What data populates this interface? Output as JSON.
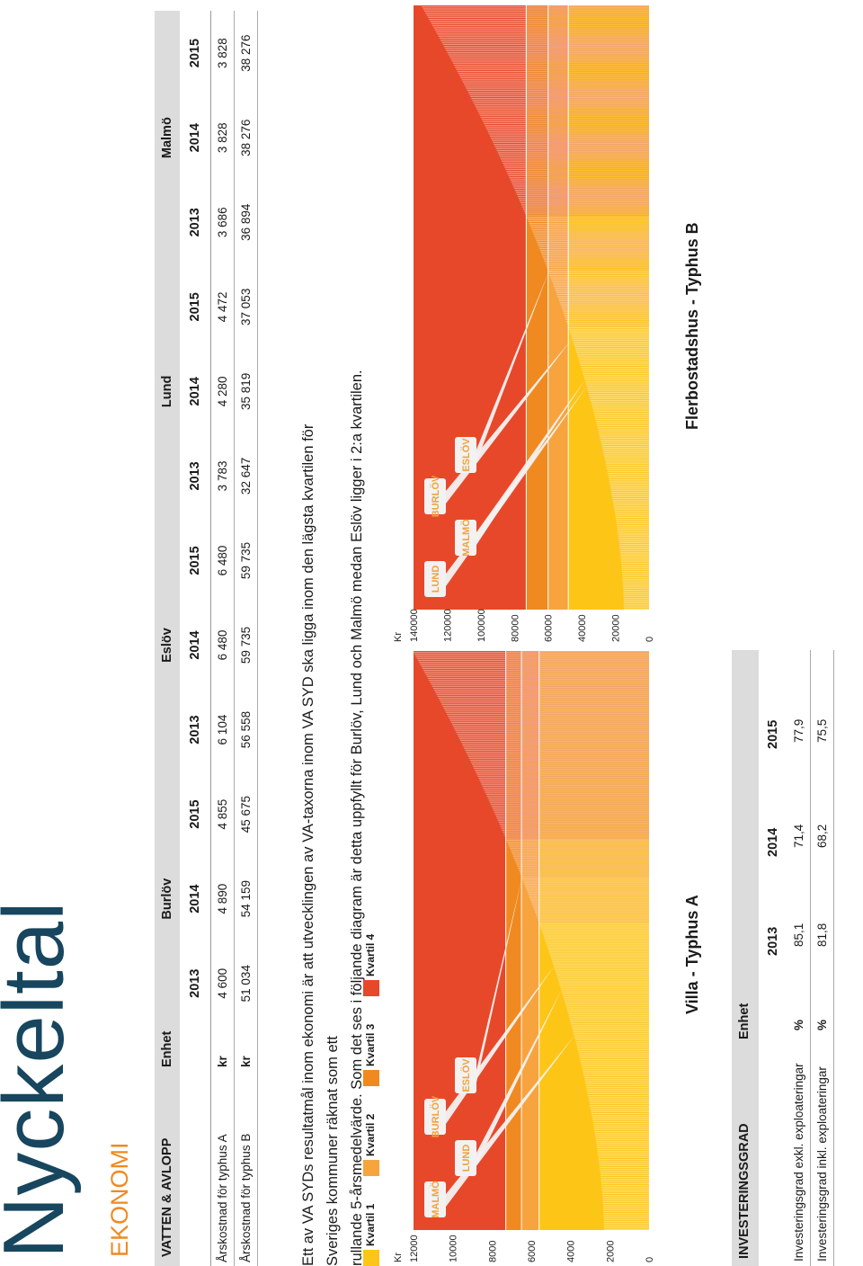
{
  "title": "Nyckeltal",
  "section": "EKONOMI",
  "cost_table": {
    "heading": "VATTEN & AVLOPP",
    "unit_heading": "Enhet",
    "cities": [
      "Burlöv",
      "Eslöv",
      "Lund",
      "Malmö"
    ],
    "years": [
      "2013",
      "2014",
      "2015"
    ],
    "rows": [
      {
        "label": "Årskostnad för typhus A",
        "unit": "kr",
        "values": [
          "4 600",
          "4 890",
          "4 855",
          "6 104",
          "6 480",
          "6 480",
          "3 783",
          "4 280",
          "4 472",
          "3 686",
          "3 828",
          "3 828"
        ]
      },
      {
        "label": "Årskostnad för typhus B",
        "unit": "kr",
        "values": [
          "51 034",
          "54 159",
          "45 675",
          "56 558",
          "59 735",
          "59 735",
          "32 647",
          "35 819",
          "37 053",
          "36 894",
          "38 276",
          "38 276"
        ]
      }
    ]
  },
  "paragraph": {
    "line1": "Ett av VA SYDs resultatmål inom ekonomi är att utvecklingen av VA-taxorna inom VA SYD ska ligga inom den lägsta kvartilen för Sveriges kommuner räknat som ett",
    "line2": "rullande 5-årsmedelvärde. Som det ses i följande diagram är detta uppfyllt för Burlöv, Lund och Malmö medan Eslöv ligger i 2:a kvartilen."
  },
  "legend": [
    {
      "label": "Kvartil 1",
      "color": "#fdc617"
    },
    {
      "label": "Kvartil 2",
      "color": "#f7a43e"
    },
    {
      "label": "Kvartil 3",
      "color": "#f08a20"
    },
    {
      "label": "Kvartil 4",
      "color": "#e8482a"
    }
  ],
  "chart_data": [
    {
      "type": "bar",
      "title": "Villa - Typhus A",
      "ylabel": "Kr",
      "ylim": [
        0,
        12000
      ],
      "y_ticks": [
        "0",
        "2000",
        "4000",
        "6000",
        "8000",
        "10000",
        "12000"
      ],
      "bar_count": 290,
      "quartile_thresholds": [
        5600,
        6500,
        7300
      ],
      "min_value": 2300,
      "max_value": 12000,
      "annotations": [
        {
          "label": "MALMÖ",
          "value": 3828,
          "quartile": 1
        },
        {
          "label": "LUND",
          "value": 4472,
          "quartile": 1
        },
        {
          "label": "BURLÖV",
          "value": 4855,
          "quartile": 1
        },
        {
          "label": "ESLÖV",
          "value": 6480,
          "quartile": 2
        }
      ]
    },
    {
      "type": "bar",
      "title": "Flerbostadshus - Typhus B",
      "ylabel": "Kr",
      "ylim": [
        0,
        140000
      ],
      "y_ticks": [
        "0",
        "20000",
        "40000",
        "60000",
        "80000",
        "100000",
        "120000",
        "140000"
      ],
      "bar_count": 290,
      "quartile_thresholds": [
        48000,
        60000,
        73000
      ],
      "min_value": 15000,
      "max_value": 135000,
      "annotations": [
        {
          "label": "LUND",
          "value": 37053,
          "quartile": 1
        },
        {
          "label": "MALMÖ",
          "value": 38276,
          "quartile": 1
        },
        {
          "label": "BURLÖV",
          "value": 45675,
          "quartile": 1
        },
        {
          "label": "ESLÖV",
          "value": 59735,
          "quartile": 2
        }
      ]
    }
  ],
  "inv_table": {
    "heading": "INVESTERINGSGRAD",
    "unit_heading": "Enhet",
    "years": [
      "2013",
      "2014",
      "2015"
    ],
    "rows": [
      {
        "label": "Investeringsgrad exkl. exploateringar",
        "unit": "%",
        "values": [
          "85,1",
          "71,4",
          "77,9"
        ]
      },
      {
        "label": "Investeringsgrad inkl. exploateringar",
        "unit": "%",
        "values": [
          "81,8",
          "68,2",
          "75,5"
        ]
      }
    ]
  }
}
